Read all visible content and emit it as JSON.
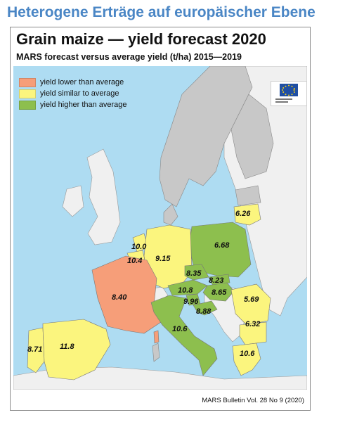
{
  "page": {
    "heading": "Heterogene Erträge auf europäischer Ebene"
  },
  "map": {
    "title": "Grain maize — yield forecast 2020",
    "subtitle": "MARS forecast versus average yield (t/ha) 2015—2019",
    "source": "MARS Bulletin Vol. 28 No 9 (2020)",
    "colors": {
      "sea": "#aedcf2",
      "non_eu": "#f0f0f0",
      "no_data": "#c8c8c8",
      "lower": "#f69e79",
      "similar": "#fbf57e",
      "higher": "#8dbf4e"
    },
    "legend": [
      {
        "label": "yield lower than average",
        "class": "lower"
      },
      {
        "label": "yield similar to average",
        "class": "similar"
      },
      {
        "label": "yield higher than average",
        "class": "higher"
      }
    ],
    "values": {
      "lithuania": "6.26",
      "poland": "6.68",
      "netherlands": "10.0",
      "belgium": "10.4",
      "germany": "9.15",
      "czechia": "8.35",
      "slovakia": "8.23",
      "austria": "10.8",
      "hungary": "8.65",
      "slovenia": "9.96",
      "croatia": "8.88",
      "france": "8.40",
      "italy": "10.6",
      "romania": "5.69",
      "bulgaria": "6.32",
      "greece": "10.6",
      "portugal": "8.71",
      "spain": "11.8"
    }
  }
}
